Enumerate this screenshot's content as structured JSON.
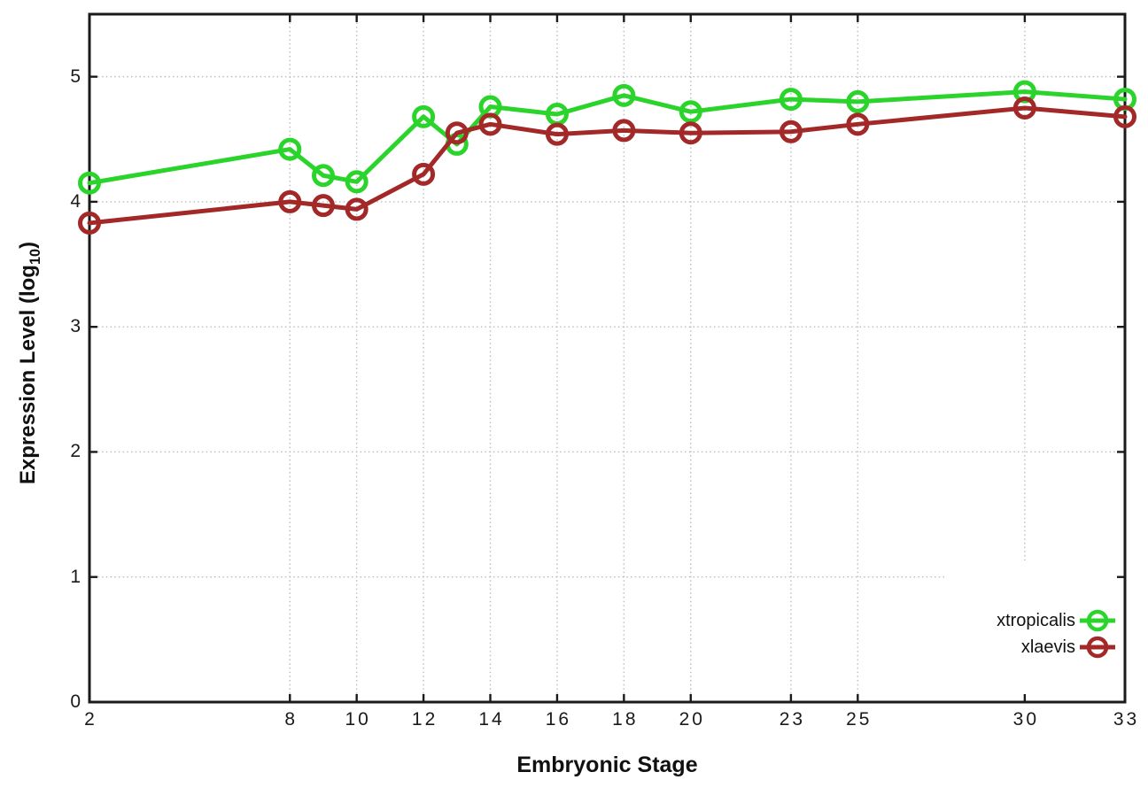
{
  "chart_data": {
    "type": "line",
    "title": "",
    "xlabel": "Embryonic Stage",
    "ylabel": "Expression Level (log10)",
    "ylabel_parts": {
      "prefix": "Expression Level (log",
      "sub": "10",
      "suffix": ")"
    },
    "x": [
      2,
      8,
      9,
      10,
      12,
      13,
      14,
      16,
      18,
      20,
      23,
      25,
      30,
      33
    ],
    "series": [
      {
        "name": "xtropicalis",
        "color": "#2ad42a",
        "values": [
          4.15,
          4.42,
          4.21,
          4.16,
          4.68,
          4.46,
          4.76,
          4.7,
          4.85,
          4.72,
          4.82,
          4.8,
          4.88,
          4.82
        ]
      },
      {
        "name": "xlaevis",
        "color": "#a32929",
        "values": [
          3.83,
          4.0,
          3.97,
          3.94,
          4.22,
          4.55,
          4.62,
          4.54,
          4.57,
          4.55,
          4.56,
          4.62,
          4.75,
          4.68
        ]
      }
    ],
    "xlim": [
      2,
      33
    ],
    "ylim": [
      0,
      5.5
    ],
    "x_ticks": [
      2,
      8,
      10,
      12,
      14,
      16,
      18,
      20,
      23,
      25,
      30,
      33
    ],
    "x_tick_labels": [
      "2",
      "8",
      "10",
      "12",
      "14",
      "16",
      "18",
      "20",
      "23",
      "25",
      "30",
      "33"
    ],
    "y_ticks": [
      0,
      1,
      2,
      3,
      4,
      5
    ],
    "y_tick_labels": [
      "0",
      "1",
      "2",
      "3",
      "4",
      "5"
    ],
    "grid": "dotted",
    "legend_position": "inside bottom-right, opaque white box",
    "marker": "open-circle",
    "colors": {
      "frame": "#1a1a1a",
      "gridline": "#bcbcbc",
      "background": "#ffffff",
      "tick_text": "#1a1a1a"
    }
  }
}
